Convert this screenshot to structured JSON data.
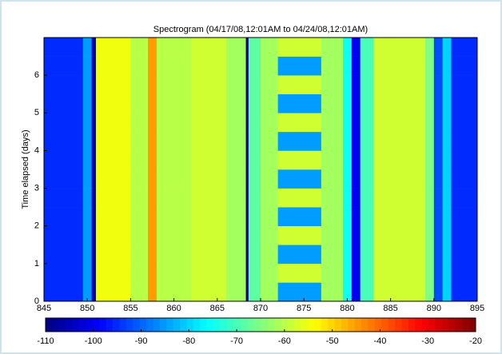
{
  "chart_data": {
    "type": "heatmap",
    "title": "Spectrogram (04/17/08,12:01AM to 04/24/08,12:01AM)",
    "y_label": "Time elapsed (days)",
    "colormap": "jet",
    "clim": [
      -110,
      -20
    ],
    "cticks": [
      -110,
      -100,
      -90,
      -80,
      -70,
      -60,
      -50,
      -40,
      -30,
      -20
    ],
    "xlim": [
      845,
      895
    ],
    "xticks": [
      845,
      850,
      855,
      860,
      865,
      870,
      875,
      880,
      885,
      890,
      895
    ],
    "ylim": [
      0,
      7
    ],
    "yticks": [
      0,
      1,
      2,
      3,
      4,
      5,
      6
    ],
    "x_edges": [
      845,
      849.5,
      850.5,
      851,
      855,
      857,
      858,
      862,
      866,
      868.3,
      868.6,
      870,
      872,
      877,
      879.5,
      880.5,
      881.5,
      883,
      889,
      890,
      891,
      892,
      895
    ],
    "y_edges": [
      0,
      0.5,
      1,
      1.5,
      2,
      2.5,
      3,
      3.5,
      4,
      4.5,
      5,
      5.5,
      6,
      6.5,
      7
    ],
    "values": [
      [
        -95,
        -85,
        -105,
        -55,
        -60,
        -45,
        -60,
        -58,
        -62,
        -110,
        -68,
        -62,
        -85,
        -62,
        -75,
        -100,
        -70,
        -58,
        -65,
        -92,
        -80,
        -95
      ],
      [
        -95,
        -85,
        -105,
        -55,
        -60,
        -45,
        -60,
        -58,
        -62,
        -110,
        -68,
        -62,
        -58,
        -62,
        -75,
        -100,
        -70,
        -58,
        -65,
        -92,
        -80,
        -95
      ],
      [
        -95,
        -85,
        -105,
        -55,
        -60,
        -45,
        -60,
        -58,
        -62,
        -110,
        -68,
        -62,
        -85,
        -62,
        -75,
        -100,
        -70,
        -58,
        -65,
        -92,
        -80,
        -95
      ],
      [
        -95,
        -85,
        -105,
        -55,
        -60,
        -45,
        -60,
        -58,
        -62,
        -110,
        -68,
        -62,
        -58,
        -62,
        -75,
        -100,
        -70,
        -58,
        -65,
        -92,
        -80,
        -95
      ],
      [
        -95,
        -85,
        -105,
        -55,
        -60,
        -45,
        -60,
        -58,
        -62,
        -110,
        -68,
        -62,
        -85,
        -62,
        -75,
        -100,
        -70,
        -58,
        -65,
        -92,
        -80,
        -95
      ],
      [
        -95,
        -85,
        -105,
        -55,
        -60,
        -45,
        -60,
        -58,
        -62,
        -110,
        -68,
        -62,
        -58,
        -62,
        -75,
        -100,
        -70,
        -58,
        -65,
        -92,
        -80,
        -95
      ],
      [
        -95,
        -85,
        -105,
        -55,
        -60,
        -45,
        -60,
        -58,
        -62,
        -110,
        -68,
        -62,
        -85,
        -62,
        -75,
        -100,
        -70,
        -58,
        -65,
        -92,
        -80,
        -95
      ],
      [
        -95,
        -85,
        -105,
        -55,
        -60,
        -45,
        -60,
        -58,
        -62,
        -110,
        -68,
        -62,
        -58,
        -62,
        -75,
        -100,
        -70,
        -58,
        -65,
        -92,
        -80,
        -95
      ],
      [
        -95,
        -85,
        -105,
        -55,
        -60,
        -45,
        -60,
        -58,
        -62,
        -110,
        -68,
        -62,
        -85,
        -62,
        -75,
        -100,
        -70,
        -58,
        -65,
        -92,
        -80,
        -95
      ],
      [
        -95,
        -85,
        -105,
        -55,
        -60,
        -45,
        -60,
        -58,
        -62,
        -110,
        -68,
        -62,
        -58,
        -62,
        -75,
        -100,
        -70,
        -58,
        -65,
        -92,
        -80,
        -95
      ],
      [
        -95,
        -85,
        -105,
        -55,
        -60,
        -45,
        -60,
        -58,
        -62,
        -110,
        -68,
        -62,
        -85,
        -62,
        -75,
        -100,
        -70,
        -58,
        -65,
        -92,
        -80,
        -95
      ],
      [
        -95,
        -85,
        -105,
        -55,
        -60,
        -45,
        -60,
        -58,
        -62,
        -110,
        -68,
        -62,
        -58,
        -62,
        -75,
        -100,
        -70,
        -58,
        -65,
        -92,
        -80,
        -95
      ],
      [
        -95,
        -85,
        -105,
        -55,
        -60,
        -45,
        -60,
        -58,
        -62,
        -110,
        -68,
        -62,
        -85,
        -62,
        -75,
        -100,
        -70,
        -58,
        -65,
        -92,
        -80,
        -95
      ],
      [
        -95,
        -85,
        -105,
        -55,
        -60,
        -45,
        -60,
        -58,
        -62,
        -110,
        -68,
        -62,
        -58,
        -62,
        -75,
        -100,
        -70,
        -58,
        -65,
        -92,
        -80,
        -95
      ]
    ]
  }
}
